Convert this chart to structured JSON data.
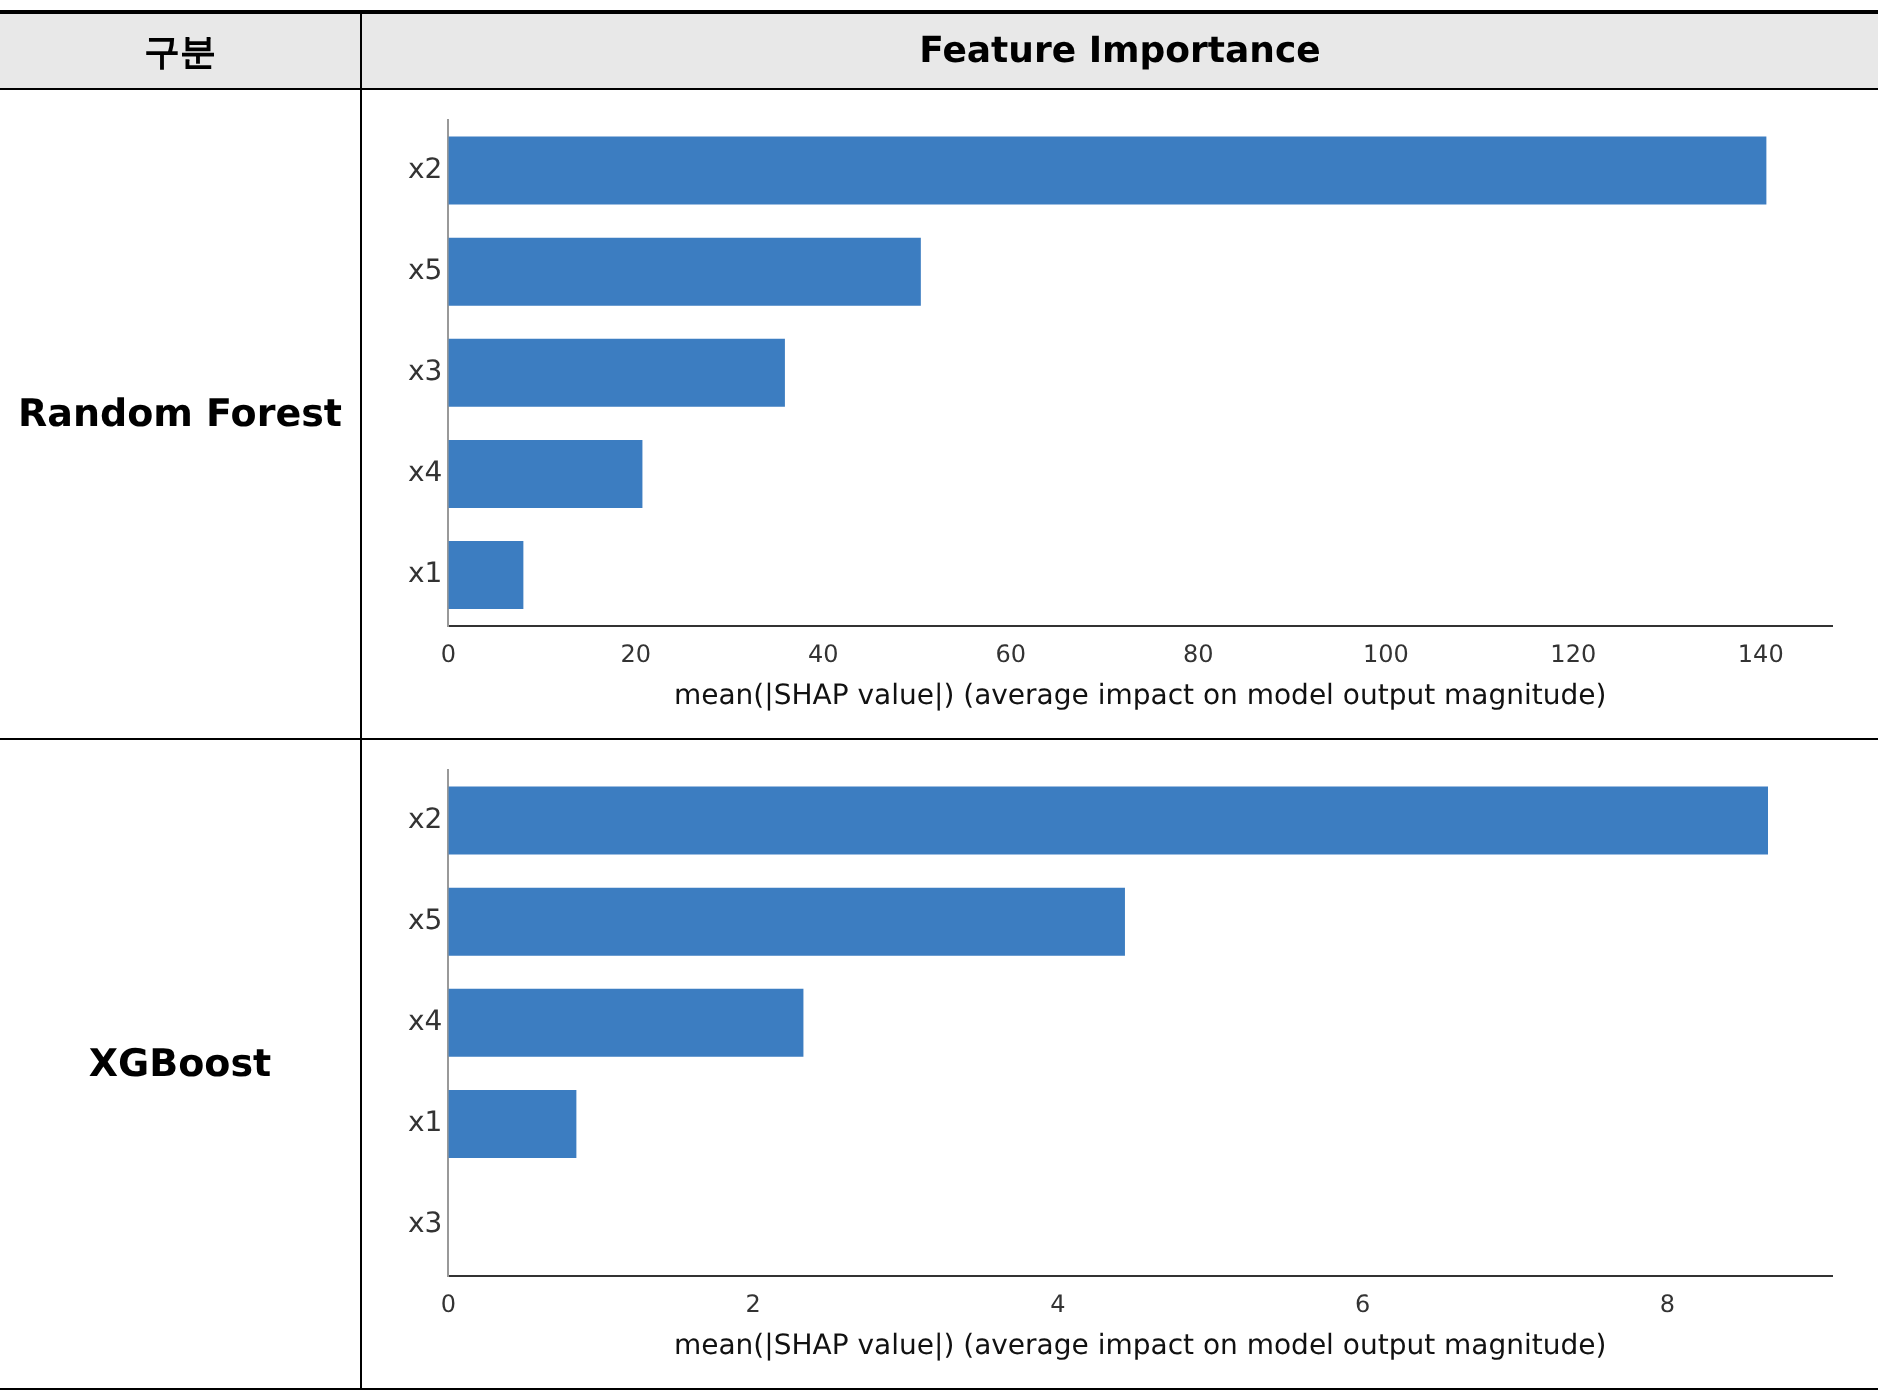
{
  "chart_data": [
    {
      "type": "bar",
      "orientation": "horizontal",
      "title": "Feature Importance",
      "annotations": [
        "구분"
      ],
      "subtitle": "Random Forest",
      "xlabel": "mean(|SHAP value|) (average impact on model output magnitude)",
      "categories": [
        "x2",
        "x5",
        "x3",
        "x4",
        "x1"
      ],
      "values": [
        140.6,
        50.4,
        35.9,
        20.7,
        8.0
      ],
      "color": "#3c7dc1",
      "xlim": [
        0,
        147.6
      ],
      "xticks": [
        0,
        20,
        40,
        60,
        80,
        100,
        120,
        140
      ],
      "grid": false,
      "legend": false
    },
    {
      "type": "bar",
      "orientation": "horizontal",
      "subtitle": "XGBoost",
      "xlabel": "mean(|SHAP value|) (average impact on model output magnitude)",
      "categories": [
        "x2",
        "x5",
        "x4",
        "x1",
        "x3"
      ],
      "values": [
        8.66,
        4.44,
        2.33,
        0.84,
        0
      ],
      "color": "#3c7dc1",
      "xlim": [
        0,
        9.08
      ],
      "xticks": [
        0,
        2,
        4,
        6,
        8
      ],
      "grid": false,
      "legend": false
    }
  ]
}
